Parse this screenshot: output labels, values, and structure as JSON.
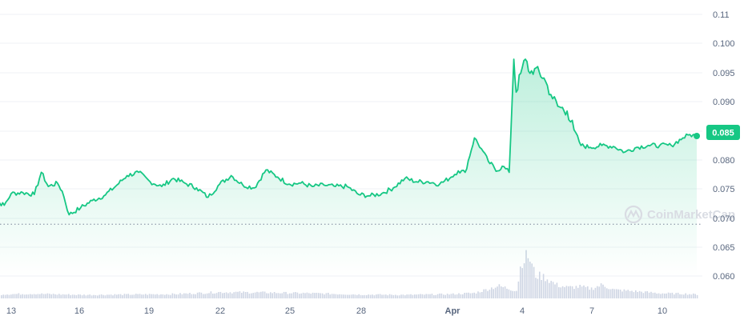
{
  "watermark": "CoinMarketCap",
  "colors": {
    "line": "#16c784",
    "fill_top": "#16c784",
    "volume": "#cfd6e4",
    "grid": "#eff2f5",
    "text": "#58667e"
  },
  "current_price_label": "0.085",
  "chart_data": [
    {
      "type": "area",
      "title": "",
      "xlabel": "",
      "ylabel": "",
      "x_tick_labels": [
        "13",
        "16",
        "19",
        "22",
        "25",
        "28",
        "Apr",
        "4",
        "7",
        "10"
      ],
      "y_tick_labels": [
        "0.11",
        "0.100",
        "0.095",
        "0.090",
        "0.085",
        "0.080",
        "0.075",
        "0.070",
        "0.065",
        "0.060"
      ],
      "ylim": [
        0.0555,
        0.111
      ],
      "current_value": 0.085,
      "reference_line": 0.0665,
      "grid": true,
      "x": [
        "Mar 12",
        "Mar 12.3",
        "Mar 12.7",
        "Mar 13",
        "Mar 13.5",
        "Mar 14",
        "Mar 14.3",
        "Mar 14.6",
        "Mar 15",
        "Mar 15.2",
        "Mar 15.5",
        "Mar 16",
        "Mar 16.5",
        "Mar 17",
        "Mar 17.5",
        "Mar 18",
        "Mar 18.5",
        "Mar 19",
        "Mar 19.5",
        "Mar 20",
        "Mar 20.5",
        "Mar 21",
        "Mar 21.5",
        "Mar 22",
        "Mar 22.5",
        "Mar 23",
        "Mar 23.5",
        "Mar 24",
        "Mar 24.5",
        "Mar 25",
        "Mar 25.5",
        "Mar 26",
        "Mar 26.5",
        "Mar 27",
        "Mar 27.5",
        "Mar 28",
        "Mar 28.5",
        "Mar 29",
        "Mar 29.5",
        "Mar 30",
        "Mar 30.5",
        "Mar 31",
        "Mar 31.5",
        "Apr 1",
        "Apr 1.3",
        "Apr 1.6",
        "Apr 2",
        "Apr 2.3",
        "Apr 2.6",
        "Apr 3",
        "Apr 3.2",
        "Apr 3.5",
        "Apr 3.7",
        "Apr 3.8",
        "Apr 4",
        "Apr 4.2",
        "Apr 4.4",
        "Apr 4.6",
        "Apr 5",
        "Apr 5.3",
        "Apr 5.6",
        "Apr 6",
        "Apr 6.3",
        "Apr 6.6",
        "Apr 7",
        "Apr 7.5",
        "Apr 8",
        "Apr 8.5",
        "Apr 9",
        "Apr 9.5",
        "Apr 10",
        "Apr 10.5",
        "Apr 11",
        "Apr 11.3",
        "Apr 11.6"
      ],
      "series": [
        {
          "values": [
            0.069,
            0.0715,
            0.0705,
            0.073,
            0.0732,
            0.0728,
            0.0775,
            0.0745,
            0.0752,
            0.0735,
            0.0685,
            0.07,
            0.0715,
            0.0725,
            0.0745,
            0.0768,
            0.0775,
            0.0755,
            0.0745,
            0.0762,
            0.0752,
            0.0742,
            0.0722,
            0.075,
            0.0768,
            0.0748,
            0.0742,
            0.078,
            0.0765,
            0.075,
            0.0752,
            0.0745,
            0.0748,
            0.0745,
            0.0745,
            0.0728,
            0.0725,
            0.073,
            0.0742,
            0.0762,
            0.0755,
            0.0755,
            0.075,
            0.0765,
            0.0778,
            0.0775,
            0.0848,
            0.0825,
            0.0798,
            0.0778,
            0.0788,
            0.0775,
            0.1015,
            0.0945,
            0.0985,
            0.1015,
            0.0985,
            0.0995,
            0.0975,
            0.094,
            0.0915,
            0.0905,
            0.0865,
            0.0832,
            0.0828,
            0.0832,
            0.083,
            0.0818,
            0.0828,
            0.0832,
            0.0832,
            0.0832,
            0.0848,
            0.0855,
            0.0852
          ]
        }
      ]
    },
    {
      "type": "bar",
      "title": "",
      "xlabel": "",
      "ylabel": "",
      "x": [
        "Mar 12",
        "Mar 14",
        "Mar 16",
        "Mar 18",
        "Mar 20",
        "Mar 22",
        "Mar 24",
        "Mar 26",
        "Mar 28",
        "Mar 30",
        "Apr 1",
        "Apr 2",
        "Apr 3",
        "Apr 3.8",
        "Apr 4",
        "Apr 4.3",
        "Apr 4.6",
        "Apr 5",
        "Apr 5.5",
        "Apr 6",
        "Apr 6.5",
        "Apr 7",
        "Apr 7.5",
        "Apr 8",
        "Apr 9",
        "Apr 10",
        "Apr 11",
        "Apr 11.6"
      ],
      "series": [
        {
          "name": "Volume",
          "values": [
            1.0,
            1.2,
            0.9,
            1.0,
            1.1,
            1.6,
            1.5,
            1.3,
            1.0,
            0.9,
            1.1,
            1.4,
            3.2,
            2.0,
            9.5,
            11.0,
            6.0,
            5.5,
            3.5,
            2.8,
            3.0,
            2.5,
            3.5,
            2.2,
            1.8,
            1.3,
            1.2,
            1.0
          ]
        }
      ],
      "ylim": [
        0,
        11.5
      ]
    }
  ]
}
